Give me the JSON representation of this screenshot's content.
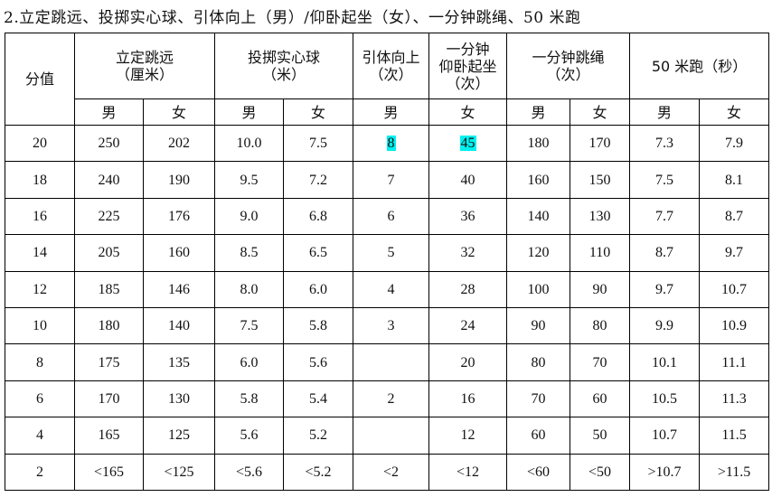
{
  "title": "2.立定跳远、投掷实心球、引体向上（男）/仰卧起坐（女）、一分钟跳绳、50 米跑",
  "headers": {
    "score": "分值",
    "standing_jump": [
      "立定跳远",
      "（厘米）"
    ],
    "shot_put": [
      "投掷实心球",
      "（米）"
    ],
    "pull_up": [
      "引体向上",
      "（次）"
    ],
    "sit_up": [
      "一分钟",
      "仰卧起坐",
      "（次）"
    ],
    "rope": [
      "一分钟跳绳",
      "（次）"
    ],
    "run50": [
      "50 米跑（秒）"
    ]
  },
  "sub_headers": [
    "男",
    "女",
    "男",
    "女",
    "男",
    "女",
    "男",
    "女",
    "男",
    "女"
  ],
  "highlight_color": "#00f0f0",
  "rows": [
    {
      "score": "20",
      "cells": [
        "250",
        "202",
        "10.0",
        "7.5",
        "8",
        "45",
        "180",
        "170",
        "7.3",
        "7.9"
      ]
    },
    {
      "score": "18",
      "cells": [
        "240",
        "190",
        "9.5",
        "7.2",
        "7",
        "40",
        "160",
        "150",
        "7.5",
        "8.1"
      ]
    },
    {
      "score": "16",
      "cells": [
        "225",
        "176",
        "9.0",
        "6.8",
        "6",
        "36",
        "140",
        "130",
        "7.7",
        "8.7"
      ]
    },
    {
      "score": "14",
      "cells": [
        "205",
        "160",
        "8.5",
        "6.5",
        "5",
        "32",
        "120",
        "110",
        "8.7",
        "9.7"
      ]
    },
    {
      "score": "12",
      "cells": [
        "185",
        "146",
        "8.0",
        "6.0",
        "4",
        "28",
        "100",
        "90",
        "9.7",
        "10.7"
      ]
    },
    {
      "score": "10",
      "cells": [
        "180",
        "140",
        "7.5",
        "5.8",
        "3",
        "24",
        "90",
        "80",
        "9.9",
        "10.9"
      ]
    },
    {
      "score": "8",
      "cells": [
        "175",
        "135",
        "6.0",
        "5.6",
        "",
        "20",
        "80",
        "70",
        "10.1",
        "11.1"
      ]
    },
    {
      "score": "6",
      "cells": [
        "170",
        "130",
        "5.8",
        "5.4",
        "2",
        "16",
        "70",
        "60",
        "10.5",
        "11.3"
      ]
    },
    {
      "score": "4",
      "cells": [
        "165",
        "125",
        "5.6",
        "5.2",
        "",
        "12",
        "60",
        "50",
        "10.7",
        "11.5"
      ]
    },
    {
      "score": "2",
      "cells": [
        "<165",
        "<125",
        "<5.6",
        "<5.2",
        "<2",
        "<12",
        "<60",
        "<50",
        ">10.7",
        ">11.5"
      ]
    }
  ]
}
